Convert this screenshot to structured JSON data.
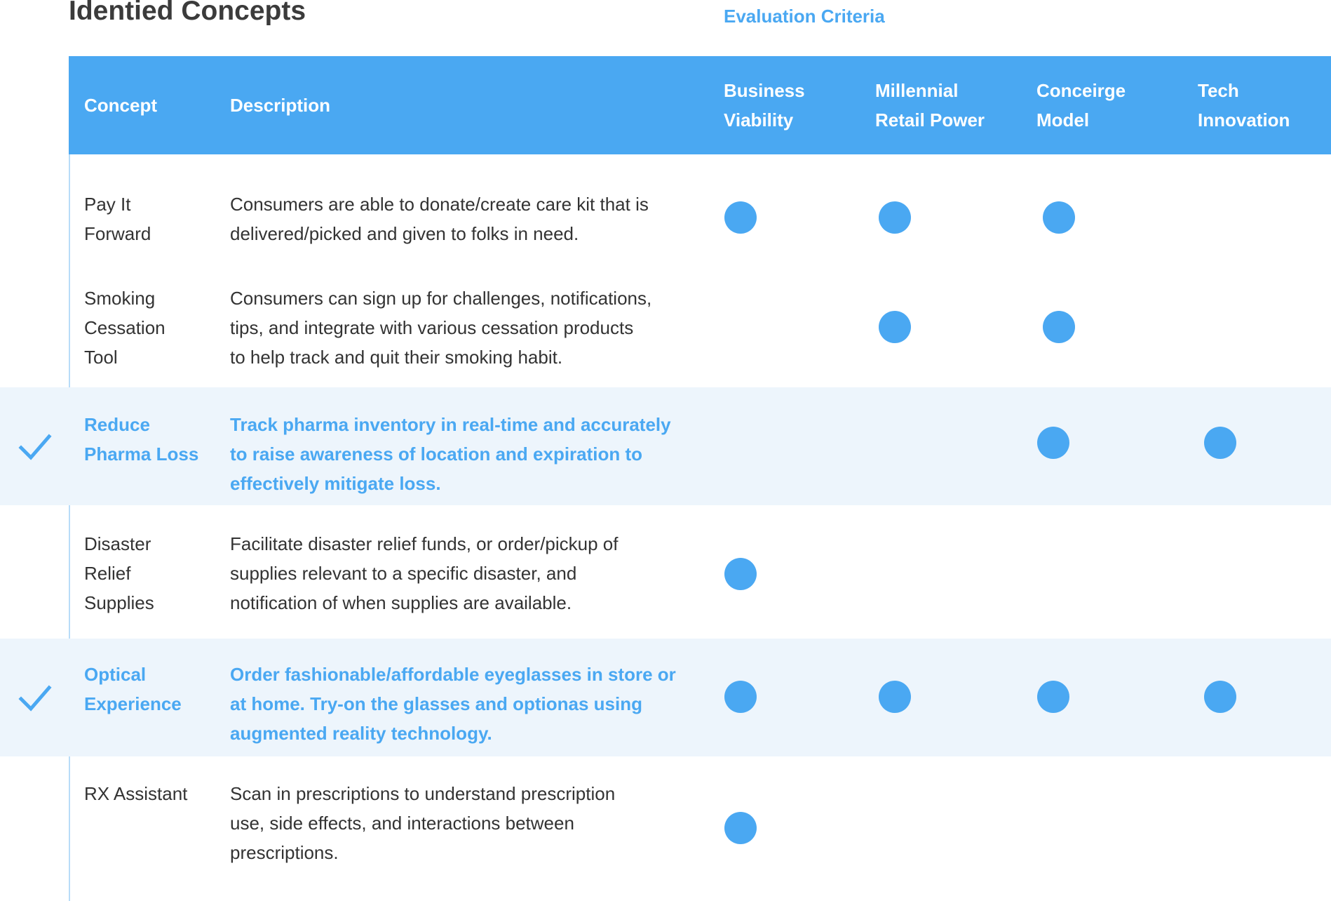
{
  "page": {
    "title": "Identied Concepts",
    "evaluation_heading": "Evaluation Criteria"
  },
  "colors": {
    "accent": "#4AA8F2",
    "text": "#333333",
    "selected_row_bg": "#EDF5FC",
    "frame_border": "#B8DCF8"
  },
  "table": {
    "headers": {
      "concept": "Concept",
      "description": "Description",
      "criteria": [
        {
          "line1": "Business",
          "line2": "Viability"
        },
        {
          "line1": "Millennial",
          "line2": "Retail Power"
        },
        {
          "line1": "Conceirge",
          "line2": "Model"
        },
        {
          "line1": "Tech",
          "line2": "Innovation"
        }
      ]
    },
    "rows": [
      {
        "concept": [
          "Pay It",
          "Forward"
        ],
        "description": [
          "Consumers are able to donate/create care kit that is",
          "delivered/picked and given to folks in need."
        ],
        "selected": false,
        "marks": [
          true,
          true,
          true,
          false
        ]
      },
      {
        "concept": [
          "Smoking",
          "Cessation",
          "Tool"
        ],
        "description": [
          "Consumers can sign up for challenges, notifications,",
          "tips, and integrate with various cessation products",
          "to help track and quit their smoking habit."
        ],
        "selected": false,
        "marks": [
          false,
          true,
          true,
          false
        ]
      },
      {
        "concept": [
          "Reduce",
          "Pharma Loss"
        ],
        "description": [
          "Track pharma inventory in real-time and accurately",
          "to raise awareness of location and expiration to",
          "effectively mitigate loss."
        ],
        "selected": true,
        "marks": [
          false,
          false,
          true,
          true
        ]
      },
      {
        "concept": [
          "Disaster",
          "Relief",
          "Supplies"
        ],
        "description": [
          "Facilitate disaster relief funds, or order/pickup of",
          "supplies relevant to a specific disaster, and",
          "notification of when supplies are available."
        ],
        "selected": false,
        "marks": [
          true,
          false,
          false,
          false
        ]
      },
      {
        "concept": [
          "Optical",
          "Experience"
        ],
        "description": [
          "Order fashionable/affordable eyeglasses in store or",
          "at home. Try-on the glasses and optionas using",
          "augmented reality technology."
        ],
        "selected": true,
        "marks": [
          true,
          true,
          true,
          true
        ]
      },
      {
        "concept": [
          "RX Assistant"
        ],
        "description": [
          "Scan in prescriptions to understand prescription",
          "use, side effects, and interactions between",
          "prescriptions."
        ],
        "selected": false,
        "marks": [
          true,
          false,
          false,
          false
        ]
      }
    ]
  }
}
